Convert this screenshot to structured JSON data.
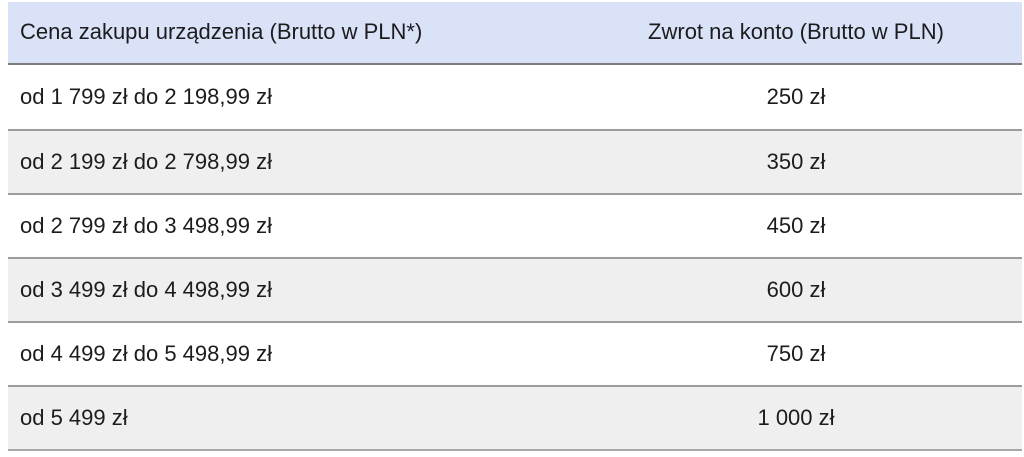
{
  "table": {
    "columns": [
      {
        "label": "Cena zakupu urządzenia (Brutto w PLN*)"
      },
      {
        "label": "Zwrot na konto (Brutto w PLN)"
      }
    ],
    "rows": [
      {
        "price_range": "od 1 799 zł do 2 198,99 zł",
        "refund": "250 zł"
      },
      {
        "price_range": "od 2 199 zł do 2 798,99 zł",
        "refund": "350 zł"
      },
      {
        "price_range": "od 2 799 zł do 3 498,99 zł",
        "refund": "450 zł"
      },
      {
        "price_range": "od 3 499 zł do 4 498,99 zł",
        "refund": "600 zł"
      },
      {
        "price_range": "od 4 499 zł do 5 498,99 zł",
        "refund": "750 zł"
      },
      {
        "price_range": "od 5 499 zł",
        "refund": "1 000 zł"
      }
    ],
    "colors": {
      "header_bg": "#dae2f7",
      "row_bg": "#ffffff",
      "row_alt_bg": "#efeff0",
      "header_border": "#7d7d7d",
      "row_border": "#9c9c9c",
      "bottom_border": "#a8a8a8",
      "text": "#1c1c1e"
    }
  }
}
